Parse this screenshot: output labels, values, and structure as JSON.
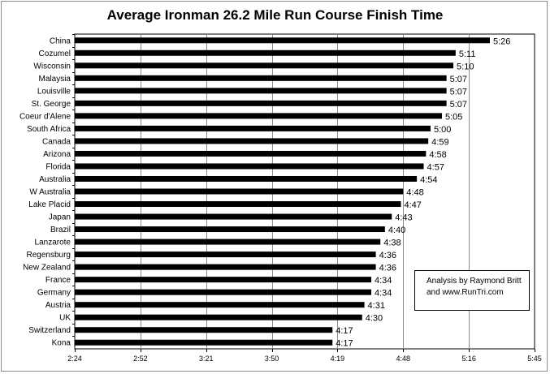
{
  "chart_data": {
    "type": "bar",
    "orientation": "horizontal",
    "title": "Average Ironman 26.2 Mile Run Course Finish Time",
    "xlabel": "",
    "ylabel": "",
    "x_ticks": [
      "2:24",
      "2:52",
      "3:21",
      "3:50",
      "4:19",
      "4:48",
      "5:16",
      "5:45"
    ],
    "x_tick_minutes": [
      144,
      172.8,
      201.6,
      230.4,
      259.2,
      288,
      316.8,
      345.6
    ],
    "xlim_minutes": [
      144,
      345.6
    ],
    "grid": "vertical",
    "bar_color": "#000000",
    "categories": [
      "China",
      "Cozumel",
      "Wisconsin",
      "Malaysia",
      "Louisville",
      "St. George",
      "Coeur d'Alene",
      "South Africa",
      "Canada",
      "Arizona",
      "Florida",
      "Australia",
      "W Australia",
      "Lake Placid",
      "Japan",
      "Brazil",
      "Lanzarote",
      "Regensburg",
      "New Zealand",
      "France",
      "Germany",
      "Austria",
      "UK",
      "Switzerland",
      "Kona"
    ],
    "labels": [
      "5:26",
      "5:11",
      "5:10",
      "5:07",
      "5:07",
      "5:07",
      "5:05",
      "5:00",
      "4:59",
      "4:58",
      "4:57",
      "4:54",
      "4:48",
      "4:47",
      "4:43",
      "4:40",
      "4:38",
      "4:36",
      "4:36",
      "4:34",
      "4:34",
      "4:31",
      "4:30",
      "4:17",
      "4:17"
    ],
    "values_minutes": [
      326,
      311,
      310,
      307,
      307,
      307,
      305,
      300,
      299,
      298,
      297,
      294,
      288,
      287,
      283,
      280,
      278,
      276,
      276,
      274,
      274,
      271,
      270,
      257,
      257
    ]
  },
  "annotation": {
    "line1": "Analysis by Raymond Britt",
    "line2": "and www.RunTri.com"
  }
}
